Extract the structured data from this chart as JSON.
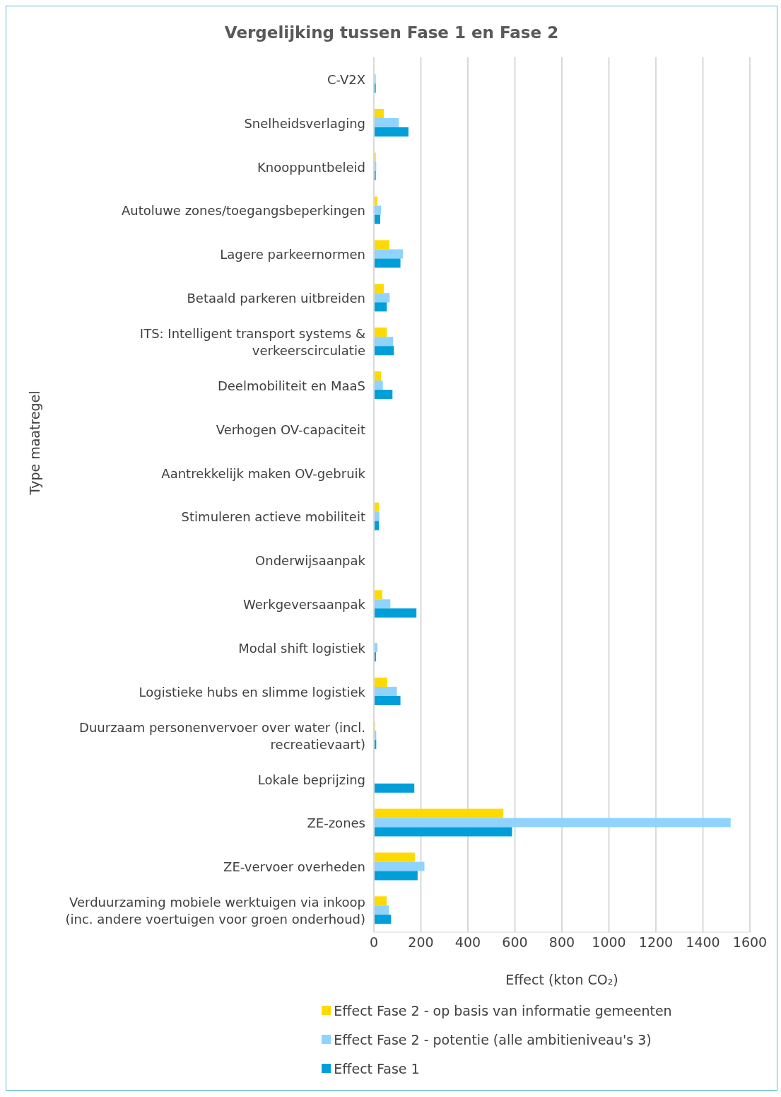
{
  "chart_data": {
    "type": "bar",
    "orientation": "horizontal",
    "title": "Vergelijking tussen Fase 1 en Fase 2",
    "xlabel": "Effect (kton CO₂)",
    "ylabel": "Type maatregel",
    "categories": [
      "C-V2X",
      "Snelheidsverlaging",
      "Knooppuntbeleid",
      "Autoluwe zones/toegangsbeperkingen",
      "Lagere parkeernormen",
      "Betaald parkeren uitbreiden",
      "ITS: Intelligent transport systems & verkeerscirculatie",
      "Deelmobiliteit en MaaS",
      "Verhogen OV-capaciteit",
      "Aantrekkelijk maken OV-gebruik",
      "Stimuleren actieve mobiliteit",
      "Onderwijsaanpak",
      "Werkgeversaanpak",
      "Modal shift logistiek",
      "Logistieke hubs en slimme logistiek",
      "Duurzaam personenvervoer over water (incl. recreatievaart)",
      "Lokale beprijzing",
      "ZE-zones",
      "ZE-vervoer overheden",
      "Verduurzaming mobiele werktuigen via inkoop (inc. andere voertuigen voor groen onderhoud)"
    ],
    "series": [
      {
        "name": "Effect Fase 2 - op basis van informatie gemeenten",
        "color": "#ffda00",
        "values": [
          null,
          42,
          8,
          15,
          66,
          42,
          55,
          30,
          null,
          null,
          21,
          null,
          36,
          null,
          57,
          5,
          null,
          551,
          174,
          54
        ]
      },
      {
        "name": "Effect Fase 2 - potentie (alle ambitieniveau's 3)",
        "color": "#8fd3fe",
        "values": [
          8,
          106,
          10,
          30,
          124,
          67,
          82,
          38,
          null,
          null,
          23,
          null,
          70,
          15,
          98,
          10,
          null,
          1518,
          215,
          64
        ]
      },
      {
        "name": "Effect Fase 1",
        "color": "#009fd9",
        "values": [
          8,
          147,
          8,
          27,
          113,
          55,
          85,
          79,
          null,
          null,
          21,
          null,
          181,
          9,
          113,
          10,
          172,
          588,
          186,
          73
        ]
      }
    ],
    "xlim": [
      0,
      1600
    ],
    "xticks": [
      0,
      200,
      400,
      600,
      800,
      1000,
      1200,
      1400,
      1600
    ],
    "grid": "x",
    "legend": "bottom"
  }
}
